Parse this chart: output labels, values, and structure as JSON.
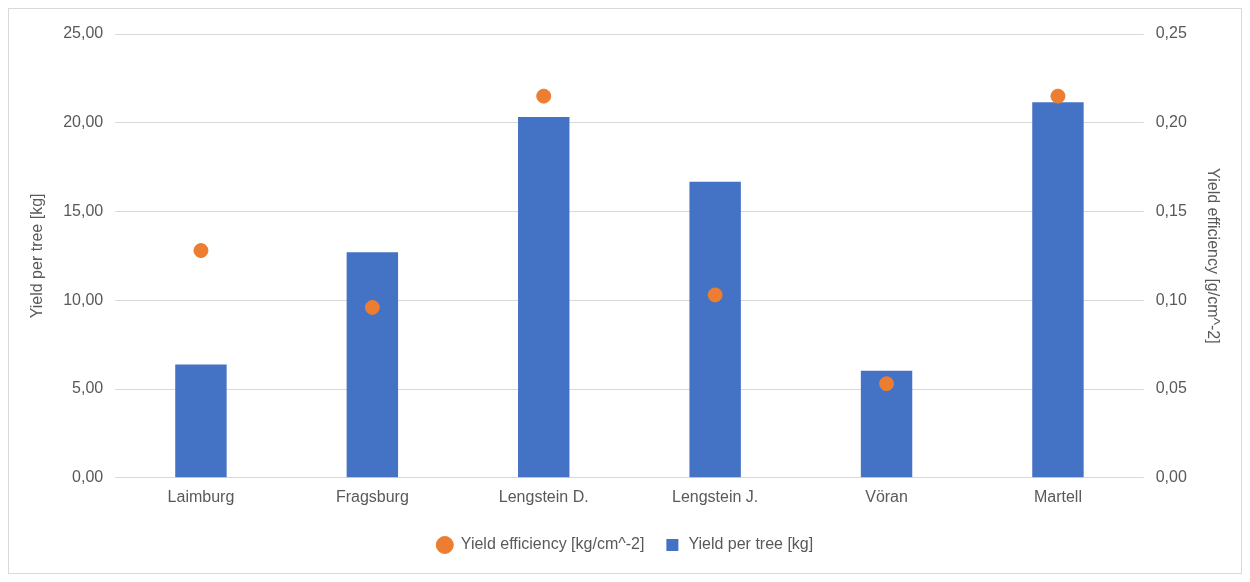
{
  "chart_data": {
    "type": "bar",
    "categories": [
      "Laimburg",
      "Fragsburg",
      "Lengstein D.",
      "Lengstein J.",
      "Vöran",
      "Martell"
    ],
    "series": [
      {
        "name": "Yield per tree [kg]",
        "color": "#4472c4",
        "values": [
          6.38,
          12.71,
          20.33,
          16.67,
          6.03,
          21.16
        ]
      },
      {
        "name": "Yield efficiency [kg/cm^-2]",
        "type": "scatter",
        "axis": "y2",
        "color": "#ed7d31",
        "values": [
          0.128,
          0.096,
          0.215,
          0.103,
          0.053,
          0.215
        ]
      }
    ],
    "ylabel": "Yield per tree [kg]",
    "y2label": "Yield efficiency [g/cm^-2]",
    "ylim": [
      0,
      25
    ],
    "yticks": [
      {
        "value": 0,
        "label": "0,00"
      },
      {
        "value": 5,
        "label": "5,00"
      },
      {
        "value": 10,
        "label": "10,00"
      },
      {
        "value": 15,
        "label": "15,00"
      },
      {
        "value": 20,
        "label": "20,00"
      },
      {
        "value": 25,
        "label": "25,00"
      }
    ],
    "y2lim": [
      0,
      0.25
    ],
    "y2ticks": [
      {
        "value": 0,
        "label": "0,00"
      },
      {
        "value": 0.05,
        "label": "0,05"
      },
      {
        "value": 0.1,
        "label": "0,10"
      },
      {
        "value": 0.15,
        "label": "0,15"
      },
      {
        "value": 0.2,
        "label": "0,20"
      },
      {
        "value": 0.25,
        "label": "0,25"
      }
    ],
    "grid": "y",
    "legend": "bottom",
    "marker": "circle"
  }
}
